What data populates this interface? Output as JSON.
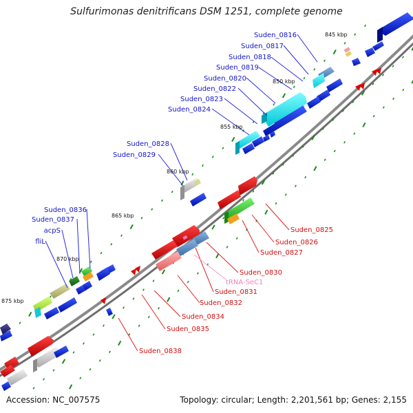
{
  "title": "Sulfurimonas denitrificans DSM 1251, complete genome",
  "footer": {
    "accession": "Accession: NC_007575",
    "summary": "Topology: circular; Length: 2,201,561 bp; Genes: 2,155"
  },
  "colors": {
    "backbone": "#8a8a8a",
    "forward_label": "#1414c8",
    "reverse_label": "#d01010",
    "rna_label": "#f080c0",
    "tick": "#1a8a1a"
  },
  "position_ticks": [
    "845 kbp",
    "850 kbp",
    "855 kbp",
    "860 kbp",
    "865 kbp",
    "870 kbp",
    "875 kbp"
  ],
  "forward_gene_labels": [
    "Suden_0816",
    "Suden_0817",
    "Suden_0818",
    "Suden_0819",
    "Suden_0820",
    "Suden_0822",
    "Suden_0823",
    "Suden_0824",
    "Suden_0828",
    "Suden_0829",
    "Suden_0836",
    "Suden_0837",
    "acpS",
    "fliL"
  ],
  "reverse_gene_labels": [
    "Suden_0825",
    "Suden_0826",
    "Suden_0827",
    "Suden_0830",
    "tRNA-SeC1",
    "Suden_0831",
    "Suden_0832",
    "Suden_0834",
    "Suden_0835",
    "Suden_0838"
  ]
}
